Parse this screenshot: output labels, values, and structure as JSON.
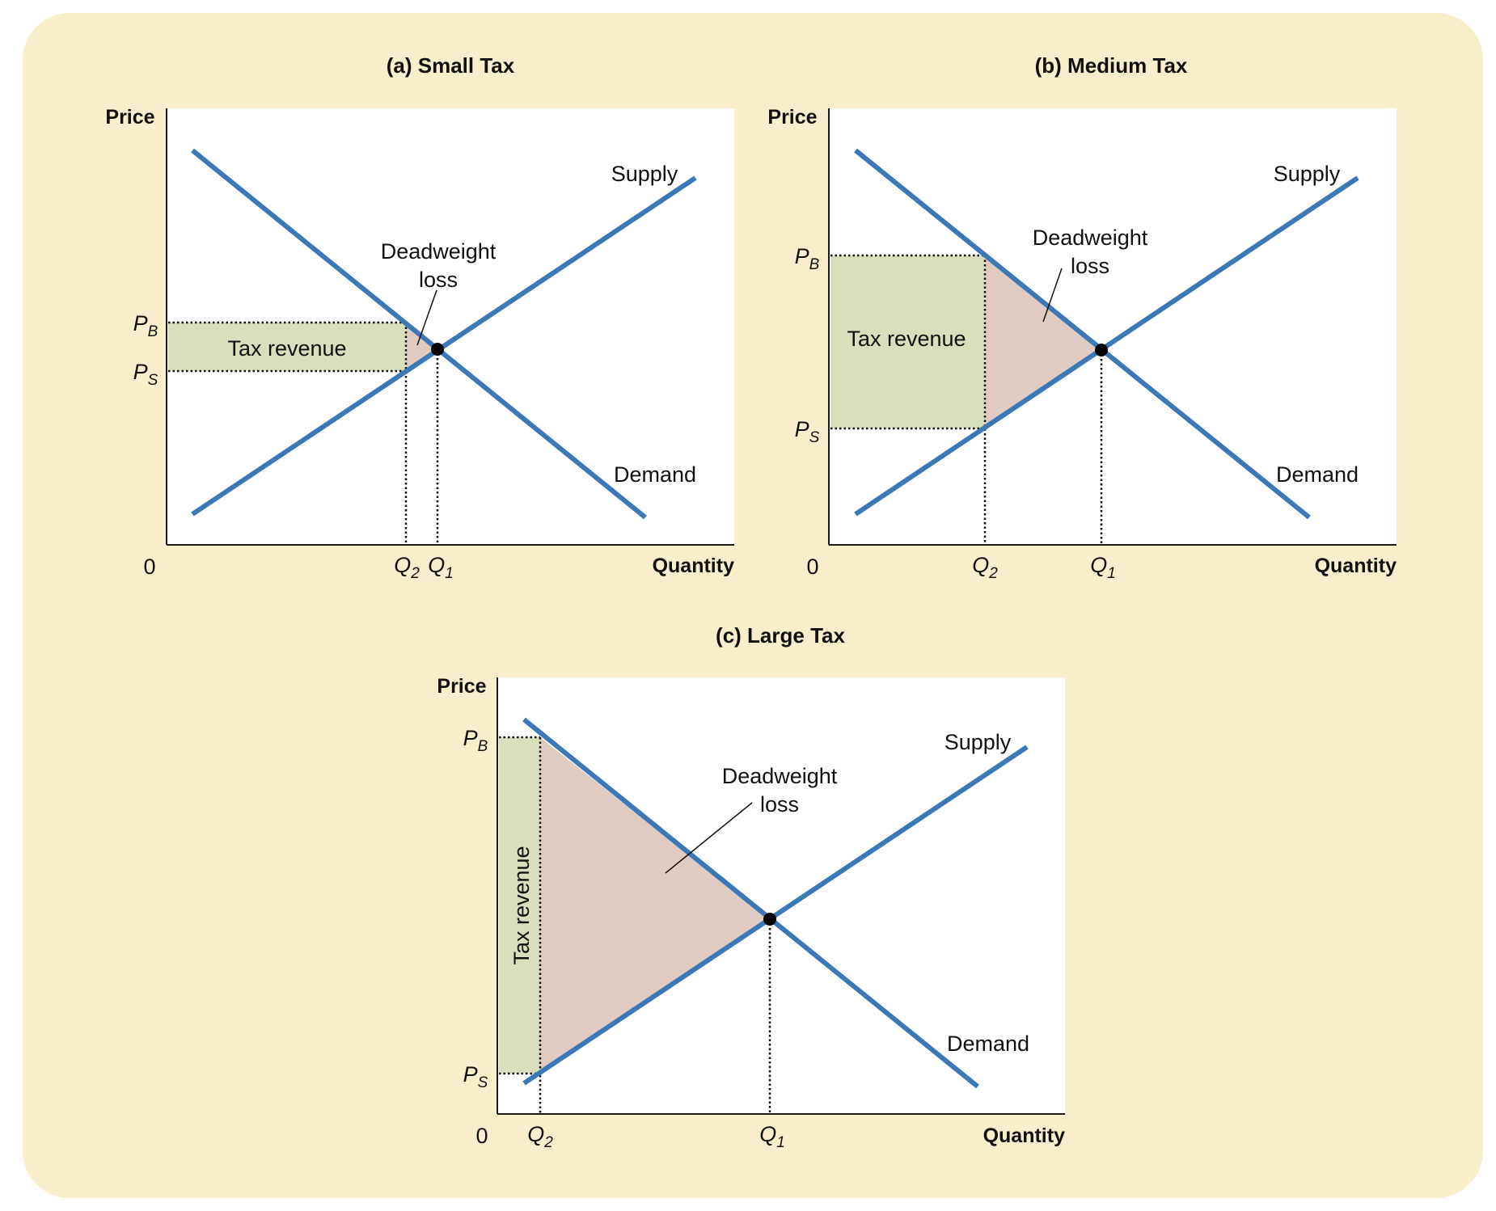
{
  "colors": {
    "page_background": "#ffffff",
    "card_background": "#f9eecb",
    "plot_background": "#ffffff",
    "curve": "#3a78b8",
    "tax_revenue_fill": "#d8dfbd",
    "deadweight_loss_fill": "#e0cbc2",
    "axis": "#1a1a1a",
    "equilibrium_dot": "#000000"
  },
  "labels": {
    "axis_y": "Price",
    "axis_x": "Quantity",
    "origin": "0",
    "supply": "Supply",
    "demand": "Demand",
    "tax_revenue": "Tax revenue",
    "deadweight_line1": "Deadweight",
    "deadweight_line2": "loss",
    "p_letter": "P",
    "buyer_sub": "B",
    "seller_sub": "S",
    "q_letter": "Q",
    "q1_sub": "1",
    "q2_sub": "2"
  },
  "panels": [
    {
      "key": "a",
      "title": "(a) Small Tax",
      "q1": 0.48,
      "q2": 0.42,
      "pb": 0.51,
      "ps": 0.4,
      "peq": 0.45
    },
    {
      "key": "b",
      "title": "(b) Medium Tax",
      "q1": 0.48,
      "q2": 0.27,
      "pb": 0.67,
      "ps": 0.27,
      "peq": 0.45
    },
    {
      "key": "c",
      "title": "(c) Large Tax",
      "q1": 0.48,
      "q2": 0.08,
      "pb": 0.87,
      "ps": 0.1,
      "peq": 0.45
    }
  ]
}
